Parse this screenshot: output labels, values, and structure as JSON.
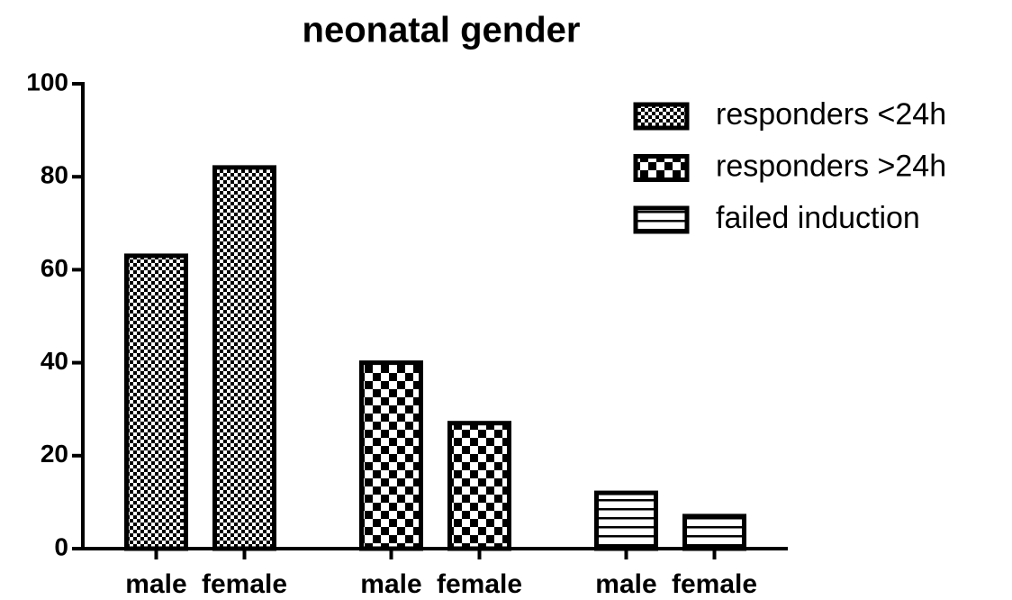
{
  "chart_data": {
    "type": "bar",
    "title": "neonatal gender",
    "categories": [
      "male",
      "female"
    ],
    "series": [
      {
        "name": "responders <24h",
        "color": "#000000",
        "values": [
          63,
          82
        ]
      },
      {
        "name": "responders >24h",
        "color": "#000000",
        "values": [
          40,
          27
        ]
      },
      {
        "name": "failed induction",
        "color": "#000000",
        "values": [
          12,
          7
        ]
      }
    ],
    "ylim": [
      0,
      100
    ],
    "yticks": [
      0,
      20,
      40,
      60,
      80,
      100
    ],
    "grid": false,
    "legend": "upper right"
  }
}
